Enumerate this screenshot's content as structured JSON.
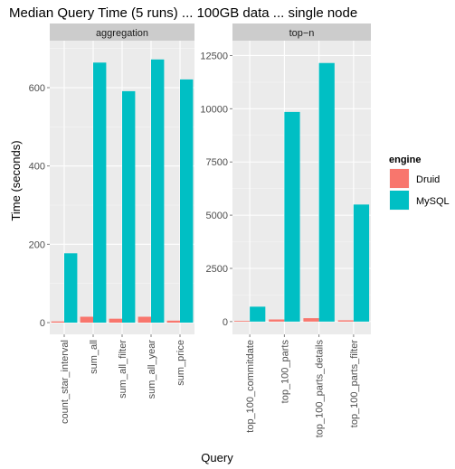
{
  "chart_data": {
    "type": "bar",
    "title": "Median Query Time (5 runs) ... 100GB data ... single node",
    "xlabel": "Query",
    "ylabel": "Time (seconds)",
    "legend": {
      "title": "engine",
      "placement": "right",
      "entries": [
        {
          "name": "Druid",
          "color": "#F8766D"
        },
        {
          "name": "MySQL",
          "color": "#00BFC4"
        }
      ]
    },
    "grid": true,
    "facets": [
      {
        "label": "aggregation",
        "categories": [
          "count_star_interval",
          "sum_all",
          "sum_all_filter",
          "sum_all_year",
          "sum_price"
        ],
        "ylim": [
          -30,
          720
        ],
        "yticks": [
          0,
          200,
          400,
          600
        ],
        "series": [
          {
            "name": "Druid",
            "values": [
              3,
              15,
              10,
              15,
              5
            ]
          },
          {
            "name": "MySQL",
            "values": [
              177,
              664,
              591,
              672,
              621
            ]
          }
        ]
      },
      {
        "label": "top−n",
        "categories": [
          "top_100_commitdate",
          "top_100_parts",
          "top_100_parts_details",
          "top_100_parts_filter"
        ],
        "ylim": [
          -600,
          13200
        ],
        "yticks": [
          0,
          2500,
          5000,
          7500,
          10000,
          12500
        ],
        "series": [
          {
            "name": "Druid",
            "values": [
              30,
              100,
              160,
              60
            ]
          },
          {
            "name": "MySQL",
            "values": [
              700,
              9850,
              12150,
              5500
            ]
          }
        ]
      }
    ]
  }
}
